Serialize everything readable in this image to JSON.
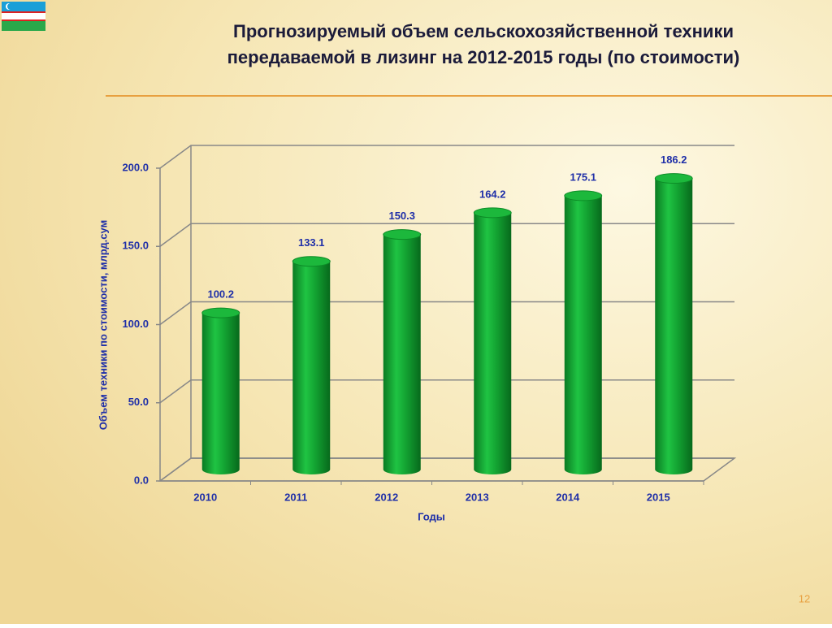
{
  "chart_data": {
    "type": "bar",
    "title": [
      "Прогнозируемый объем сельскохозяйственной техники",
      "передаваемой в лизинг на 2012-2015 годы (по стоимости)"
    ],
    "y_label": "Объем техники по стоимости, млрд.сум",
    "x_label": "Годы",
    "categories": [
      "2010",
      "2011",
      "2012",
      "2013",
      "2014",
      "2015"
    ],
    "values": [
      100.2,
      133.1,
      150.3,
      164.2,
      175.1,
      186.2
    ],
    "color": "#13a332",
    "ylim": [
      0,
      200
    ],
    "yticks": [
      {
        "value": 0,
        "label": "0.0"
      },
      {
        "value": 50,
        "label": "50.0"
      },
      {
        "value": 100,
        "label": "100.0"
      },
      {
        "value": 150,
        "label": "150.0"
      },
      {
        "value": 200,
        "label": "200.0"
      }
    ],
    "grid": true
  },
  "page_number": "12"
}
